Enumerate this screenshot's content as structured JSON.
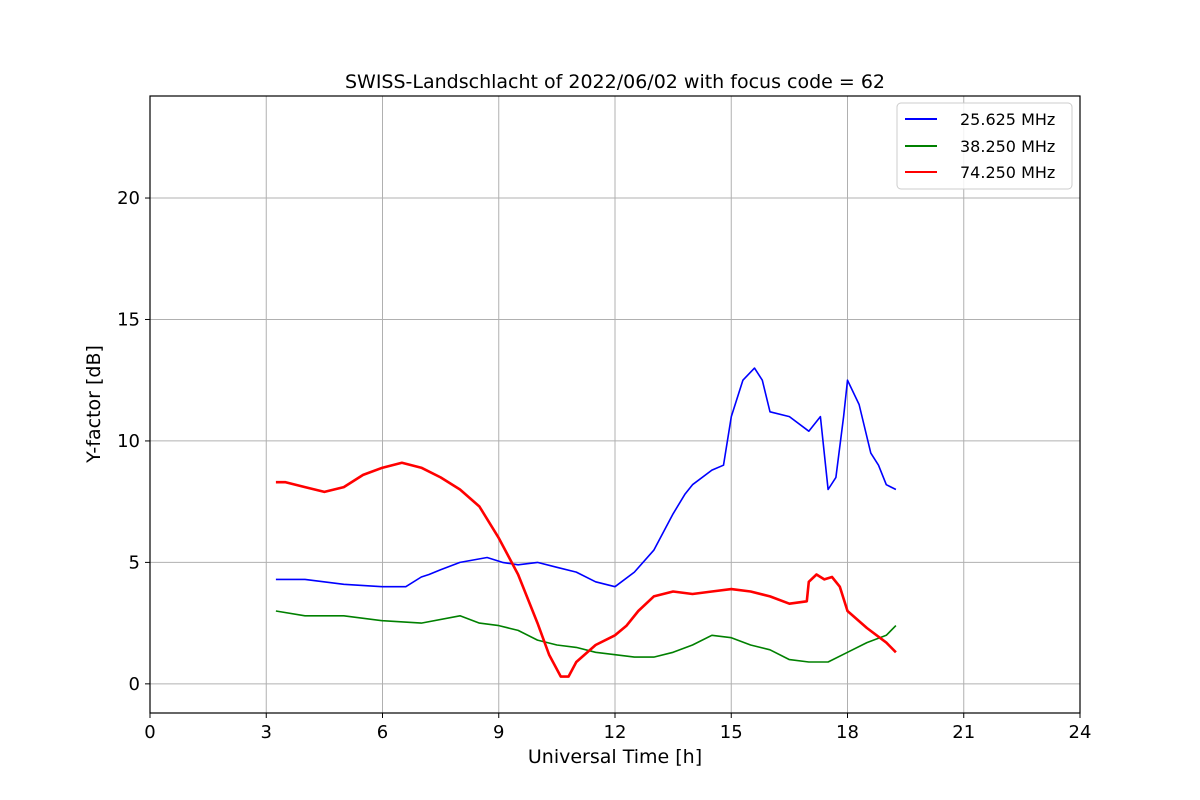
{
  "chart_data": {
    "type": "line",
    "title": "SWISS-Landschlacht of 2022/06/02 with focus code = 62",
    "xlabel": "Universal Time [h]",
    "ylabel": "Y-factor [dB]",
    "xlim": [
      0,
      24
    ],
    "ylim": [
      -1.2,
      24.2
    ],
    "xticks": [
      0,
      3,
      6,
      9,
      12,
      15,
      18,
      21,
      24
    ],
    "xtick_labels": [
      "0",
      "3",
      "6",
      "9",
      "12",
      "15",
      "18",
      "21",
      "24"
    ],
    "yticks": [
      0,
      5,
      10,
      15,
      20
    ],
    "ytick_labels": [
      "0",
      "5",
      "10",
      "15",
      "20"
    ],
    "grid": true,
    "legend_position": "top-right",
    "series": [
      {
        "name": "25.625 MHz",
        "color": "#0000ff",
        "x": [
          3.25,
          4.0,
          5.0,
          6.0,
          6.6,
          7.0,
          7.2,
          7.5,
          8.0,
          8.7,
          9.1,
          9.5,
          10.0,
          10.5,
          11.0,
          11.5,
          12.0,
          12.5,
          13.0,
          13.5,
          13.8,
          14.0,
          14.5,
          14.8,
          15.0,
          15.3,
          15.6,
          15.8,
          16.0,
          16.5,
          17.0,
          17.3,
          17.5,
          17.7,
          17.9,
          18.0,
          18.3,
          18.6,
          18.8,
          19.0,
          19.25
        ],
        "y": [
          4.3,
          4.3,
          4.1,
          4.0,
          4.0,
          4.4,
          4.5,
          4.7,
          5.0,
          5.2,
          5.0,
          4.9,
          5.0,
          4.8,
          4.6,
          4.2,
          4.0,
          4.6,
          5.5,
          7.0,
          7.8,
          8.2,
          8.8,
          9.0,
          11.0,
          12.5,
          13.0,
          12.5,
          11.2,
          11.0,
          10.4,
          11.0,
          8.0,
          8.5,
          11.0,
          12.5,
          11.5,
          9.5,
          9.0,
          8.2,
          8.0
        ]
      },
      {
        "name": "38.250 MHz",
        "color": "#008000",
        "x": [
          3.25,
          4.0,
          5.0,
          6.0,
          7.0,
          8.0,
          8.5,
          9.0,
          9.5,
          10.0,
          10.5,
          11.0,
          11.5,
          12.0,
          12.5,
          13.0,
          13.5,
          14.0,
          14.5,
          15.0,
          15.5,
          16.0,
          16.5,
          17.0,
          17.5,
          18.0,
          18.5,
          19.0,
          19.25
        ],
        "y": [
          3.0,
          2.8,
          2.8,
          2.6,
          2.5,
          2.8,
          2.5,
          2.4,
          2.2,
          1.8,
          1.6,
          1.5,
          1.3,
          1.2,
          1.1,
          1.1,
          1.3,
          1.6,
          2.0,
          1.9,
          1.6,
          1.4,
          1.0,
          0.9,
          0.9,
          1.3,
          1.7,
          2.0,
          2.4
        ]
      },
      {
        "name": "74.250 MHz",
        "color": "#ff0000",
        "x": [
          3.25,
          3.5,
          4.0,
          4.5,
          5.0,
          5.5,
          6.0,
          6.5,
          7.0,
          7.5,
          8.0,
          8.5,
          9.0,
          9.5,
          10.0,
          10.3,
          10.6,
          10.8,
          11.0,
          11.5,
          12.0,
          12.3,
          12.6,
          13.0,
          13.5,
          14.0,
          14.5,
          15.0,
          15.5,
          16.0,
          16.5,
          16.95,
          17.0,
          17.2,
          17.4,
          17.6,
          17.8,
          18.0,
          18.5,
          19.0,
          19.25
        ],
        "y": [
          8.3,
          8.3,
          8.1,
          7.9,
          8.1,
          8.6,
          8.9,
          9.1,
          8.9,
          8.5,
          8.0,
          7.3,
          6.0,
          4.5,
          2.5,
          1.2,
          0.3,
          0.3,
          0.9,
          1.6,
          2.0,
          2.4,
          3.0,
          3.6,
          3.8,
          3.7,
          3.8,
          3.9,
          3.8,
          3.6,
          3.3,
          3.4,
          4.2,
          4.5,
          4.3,
          4.4,
          4.0,
          3.0,
          2.3,
          1.7,
          1.3
        ]
      }
    ]
  }
}
